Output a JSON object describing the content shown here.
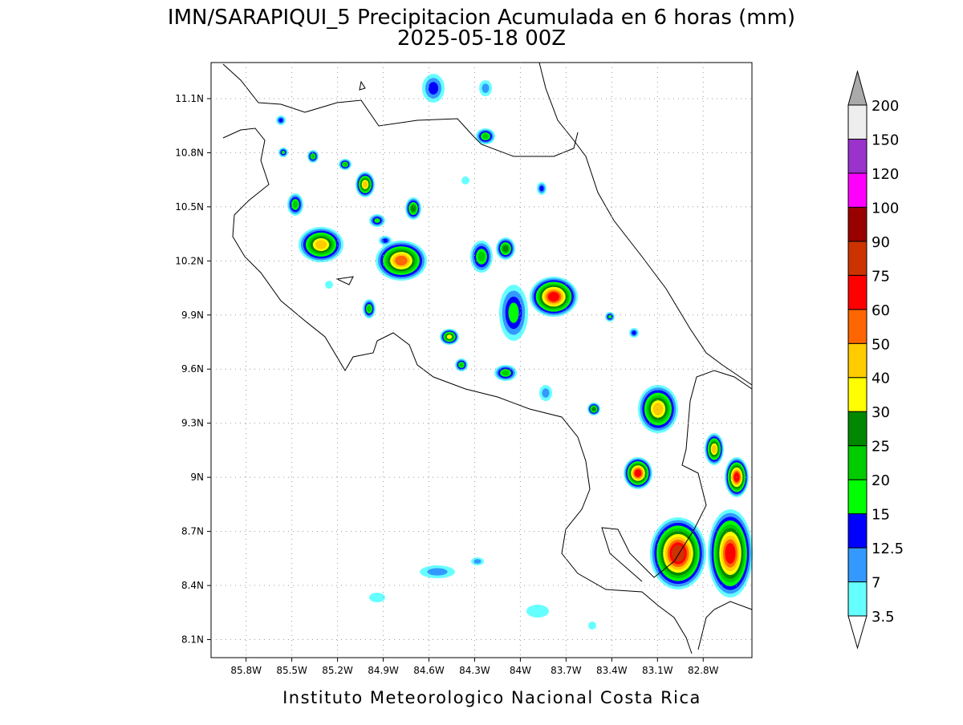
{
  "title": "IMN/SARAPIQUI_5 Precipitacion Acumulada en 6 horas (mm)",
  "subtitle": "2025-05-18 00Z",
  "footer": "Instituto Meteorologico Nacional Costa Rica",
  "map": {
    "xlim": [
      -86.03,
      -82.48
    ],
    "ylim": [
      8.0,
      11.3
    ],
    "xticks": [
      {
        "value": -85.8,
        "label": "85.8W"
      },
      {
        "value": -85.5,
        "label": "85.5W"
      },
      {
        "value": -85.2,
        "label": "85.2W"
      },
      {
        "value": -84.9,
        "label": "84.9W"
      },
      {
        "value": -84.6,
        "label": "84.6W"
      },
      {
        "value": -84.3,
        "label": "84.3W"
      },
      {
        "value": -84.0,
        "label": "84W"
      },
      {
        "value": -83.7,
        "label": "83.7W"
      },
      {
        "value": -83.4,
        "label": "83.4W"
      },
      {
        "value": -83.1,
        "label": "83.1W"
      },
      {
        "value": -82.8,
        "label": "82.8W"
      }
    ],
    "yticks": [
      {
        "value": 8.1,
        "label": "8.1N"
      },
      {
        "value": 8.4,
        "label": "8.4N"
      },
      {
        "value": 8.7,
        "label": "8.7N"
      },
      {
        "value": 9.0,
        "label": "9N"
      },
      {
        "value": 9.3,
        "label": "9.3N"
      },
      {
        "value": 9.6,
        "label": "9.6N"
      },
      {
        "value": 9.9,
        "label": "9.9N"
      },
      {
        "value": 10.2,
        "label": "10.2N"
      },
      {
        "value": 10.5,
        "label": "10.5N"
      },
      {
        "value": 10.8,
        "label": "10.8N"
      },
      {
        "value": 11.1,
        "label": "11.1N"
      }
    ],
    "grid": true
  },
  "colorbar": {
    "levels": [
      3.5,
      7,
      12.5,
      15,
      20,
      25,
      30,
      40,
      50,
      60,
      75,
      90,
      100,
      120,
      150,
      200
    ],
    "colors": [
      "#66ffff",
      "#3399ff",
      "#0000ff",
      "#00ff00",
      "#00cc00",
      "#008800",
      "#ffff00",
      "#ffcc00",
      "#ff6600",
      "#ff0000",
      "#cc3300",
      "#990000",
      "#ff00ff",
      "#9933cc",
      "#eeeeee"
    ],
    "over_color": "#aaaaaa"
  }
}
